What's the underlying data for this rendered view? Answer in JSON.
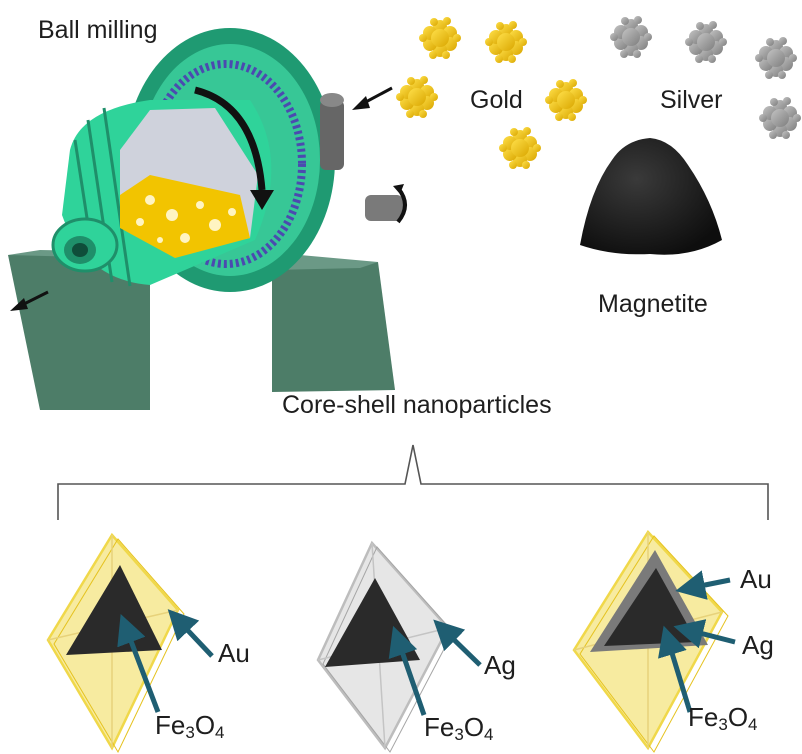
{
  "title": "Ball milling",
  "materials": {
    "gold": "Gold",
    "silver": "Silver",
    "magnetite": "Magnetite"
  },
  "product_label": "Core-shell nanoparticles",
  "particles": [
    {
      "shell_label": "Au",
      "core": {
        "element": "Fe",
        "sub1": "3",
        "o": "O",
        "sub2": "4"
      }
    },
    {
      "shell_label": "Ag",
      "core": {
        "element": "Fe",
        "sub1": "3",
        "o": "O",
        "sub2": "4"
      }
    },
    {
      "outer_shell_label": "Au",
      "inner_shell_label": "Ag",
      "core": {
        "element": "Fe",
        "sub1": "3",
        "o": "O",
        "sub2": "4"
      }
    }
  ],
  "colors": {
    "mill_green": "#2fd39a",
    "mill_dark": "#1f8f6a",
    "stand": "#4d7d68",
    "gold": "#f2c400",
    "silver": "#9b9b9b",
    "magnetite": "#1c1c1c",
    "arrow_teal": "#1f5e72",
    "gold_shell": "#f5e27a",
    "silver_shell": "#d9d9d9"
  }
}
